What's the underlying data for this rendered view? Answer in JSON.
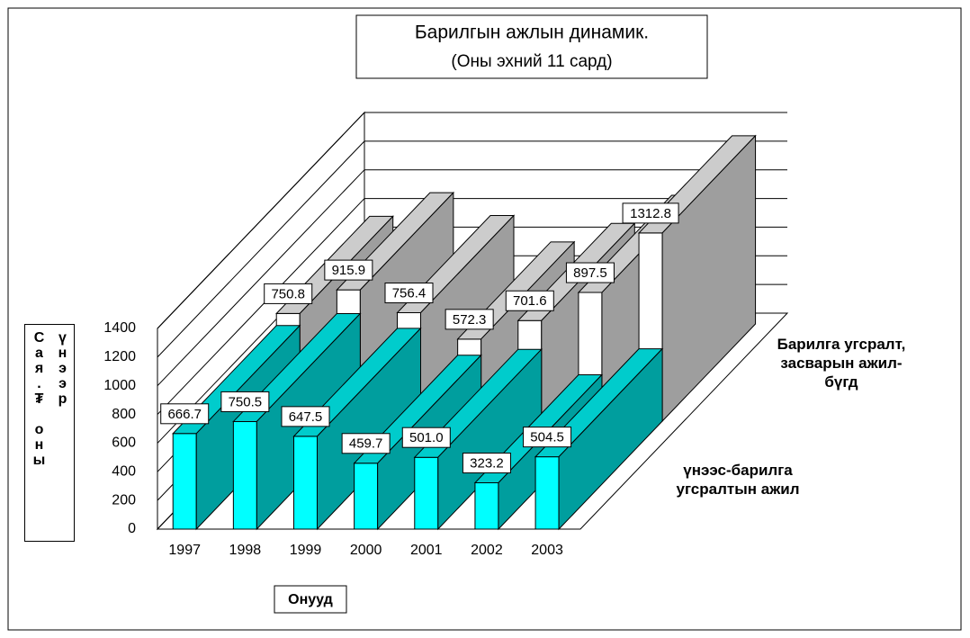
{
  "chart_data": {
    "type": "bar3d",
    "title": "Барилгын ажлын динамик.",
    "subtitle": "(Оны эхний 11 сард)",
    "y_label": "Сая.₮ оны үнээр",
    "x_label": "Онууд",
    "categories": [
      "1997",
      "1998",
      "1999",
      "2000",
      "2001",
      "2002",
      "2003"
    ],
    "series": [
      {
        "name": "үнээс-барилга угсралтын ажил",
        "color": "#00ffff",
        "values": [
          666.7,
          750.5,
          647.5,
          459.7,
          501.0,
          323.2,
          504.5
        ],
        "value_labels": [
          "666.7",
          "750.5",
          "647.5",
          "459.7",
          "501.0",
          "323.2",
          "504.5"
        ]
      },
      {
        "name": "Барилга угсралт, засварын ажил-бүгд",
        "color": "#ffffff",
        "values": [
          750.8,
          915.9,
          756.4,
          572.3,
          701.6,
          897.5,
          1312.8
        ],
        "value_labels": [
          "750.8",
          "915.9",
          "756.4",
          "572.3",
          "701.6",
          "897.5",
          "1312.8"
        ]
      }
    ],
    "ylim": [
      0,
      1400
    ],
    "yticks": [
      0,
      200,
      400,
      600,
      800,
      1000,
      1200,
      1400
    ],
    "grid": true
  }
}
